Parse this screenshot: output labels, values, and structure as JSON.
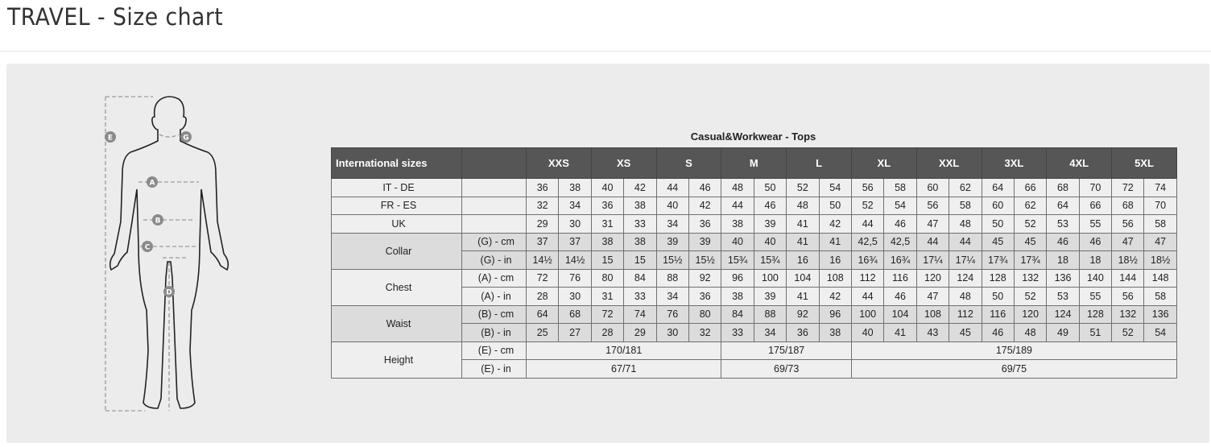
{
  "page_title": "TRAVEL - Size chart",
  "figure": {
    "markers": [
      "E",
      "G",
      "A",
      "B",
      "C",
      "D"
    ]
  },
  "table": {
    "caption": "Casual&Workwear - Tops",
    "header_label": "International sizes",
    "sizes": [
      "XXS",
      "XS",
      "S",
      "M",
      "L",
      "XL",
      "XXL",
      "3XL",
      "4XL",
      "5XL"
    ],
    "groups": [
      {
        "label": "IT - DE",
        "shade": "light",
        "rows": [
          {
            "sub": "",
            "values": [
              "36",
              "38",
              "40",
              "42",
              "44",
              "46",
              "48",
              "50",
              "52",
              "54",
              "56",
              "58",
              "60",
              "62",
              "64",
              "66",
              "68",
              "70",
              "72",
              "74"
            ]
          }
        ]
      },
      {
        "label": "FR - ES",
        "shade": "light",
        "rows": [
          {
            "sub": "",
            "values": [
              "32",
              "34",
              "36",
              "38",
              "40",
              "42",
              "44",
              "46",
              "48",
              "50",
              "52",
              "54",
              "56",
              "58",
              "60",
              "62",
              "64",
              "66",
              "68",
              "70"
            ]
          }
        ]
      },
      {
        "label": "UK",
        "shade": "light",
        "rows": [
          {
            "sub": "",
            "values": [
              "29",
              "30",
              "31",
              "33",
              "34",
              "36",
              "38",
              "39",
              "41",
              "42",
              "44",
              "46",
              "47",
              "48",
              "50",
              "52",
              "53",
              "55",
              "56",
              "58"
            ]
          }
        ]
      },
      {
        "label": "Collar",
        "shade": "dark",
        "rows": [
          {
            "sub": "(G) - cm",
            "values": [
              "37",
              "37",
              "38",
              "38",
              "39",
              "39",
              "40",
              "40",
              "41",
              "41",
              "42,5",
              "42,5",
              "44",
              "44",
              "45",
              "45",
              "46",
              "46",
              "47",
              "47"
            ]
          },
          {
            "sub": "(G)  - in",
            "values": [
              "14½",
              "14½",
              "15",
              "15",
              "15½",
              "15½",
              "15¾",
              "15¾",
              "16",
              "16",
              "16¾",
              "16¾",
              "17¼",
              "17¼",
              "17¾",
              "17¾",
              "18",
              "18",
              "18½",
              "18½"
            ]
          }
        ]
      },
      {
        "label": "Chest",
        "shade": "light",
        "rows": [
          {
            "sub": "(A) - cm",
            "values": [
              "72",
              "76",
              "80",
              "84",
              "88",
              "92",
              "96",
              "100",
              "104",
              "108",
              "112",
              "116",
              "120",
              "124",
              "128",
              "132",
              "136",
              "140",
              "144",
              "148"
            ]
          },
          {
            "sub": "(A) - in",
            "values": [
              "28",
              "30",
              "31",
              "33",
              "34",
              "36",
              "38",
              "39",
              "41",
              "42",
              "44",
              "46",
              "47",
              "48",
              "50",
              "52",
              "53",
              "55",
              "56",
              "58"
            ]
          }
        ]
      },
      {
        "label": "Waist",
        "shade": "dark",
        "rows": [
          {
            "sub": "(B) - cm",
            "values": [
              "64",
              "68",
              "72",
              "74",
              "76",
              "80",
              "84",
              "88",
              "92",
              "96",
              "100",
              "104",
              "108",
              "112",
              "116",
              "120",
              "124",
              "128",
              "132",
              "136"
            ]
          },
          {
            "sub": "(B) - in",
            "values": [
              "25",
              "27",
              "28",
              "29",
              "30",
              "32",
              "33",
              "34",
              "36",
              "38",
              "40",
              "41",
              "43",
              "45",
              "46",
              "48",
              "49",
              "51",
              "52",
              "54"
            ]
          }
        ]
      },
      {
        "label": "Height",
        "shade": "light",
        "rows": [
          {
            "sub": "(E) - cm",
            "spans": [
              {
                "value": "170/181",
                "cols": 6
              },
              {
                "value": "175/187",
                "cols": 4
              },
              {
                "value": "175/189",
                "cols": 10
              }
            ]
          },
          {
            "sub": "(E) - in",
            "spans": [
              {
                "value": "67/71",
                "cols": 6
              },
              {
                "value": "69/73",
                "cols": 4
              },
              {
                "value": "69/75",
                "cols": 10
              }
            ]
          }
        ]
      }
    ]
  }
}
